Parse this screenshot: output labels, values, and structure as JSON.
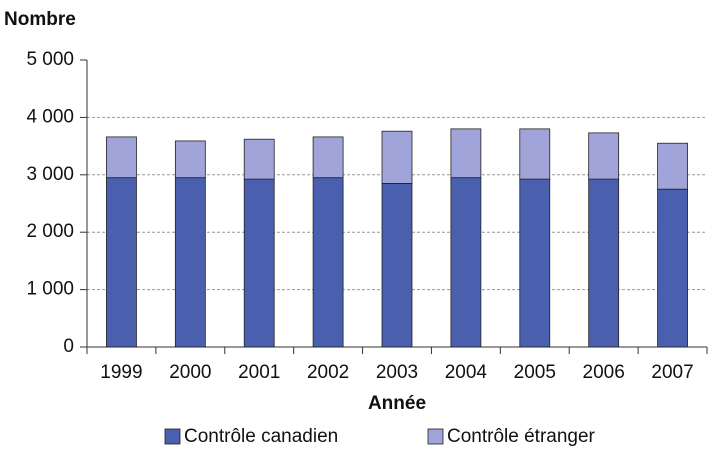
{
  "chart_data": {
    "type": "stacked-bar",
    "y_label": "Nombre",
    "x_label": "Année",
    "categories": [
      "1999",
      "2000",
      "2001",
      "2002",
      "2003",
      "2004",
      "2005",
      "2006",
      "2007"
    ],
    "series": [
      {
        "name": "Contrôle canadien",
        "color": "#4a5fae",
        "values": [
          2950,
          2950,
          2925,
          2950,
          2850,
          2950,
          2925,
          2925,
          2750
        ]
      },
      {
        "name": "Contrôle étranger",
        "color": "#a0a4d8",
        "values": [
          710,
          640,
          695,
          710,
          910,
          850,
          875,
          805,
          800
        ]
      }
    ],
    "ylim": [
      0,
      5000
    ],
    "yticks": [
      0,
      {
        "value": 1000,
        "label": "1 000"
      },
      {
        "value": 2000,
        "label": "2 000"
      },
      {
        "value": 3000,
        "label": "3 000"
      },
      {
        "value": 4000,
        "label": "4 000"
      },
      {
        "value": 5000,
        "label": "5 000"
      }
    ],
    "grid": true
  }
}
